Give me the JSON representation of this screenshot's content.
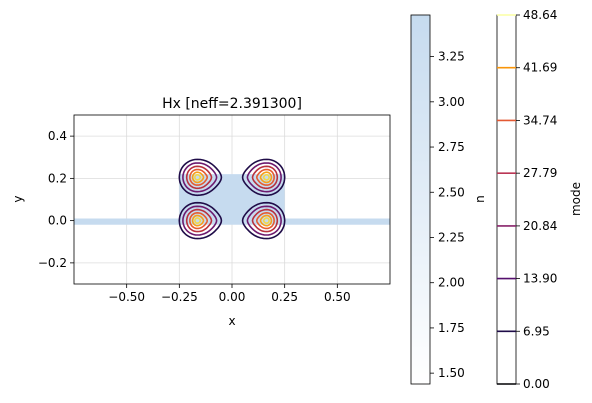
{
  "chart_data": {
    "type": "contour",
    "title": "Hx [neff=2.391300]",
    "xlabel": "x",
    "ylabel": "y",
    "xlim": [
      -0.75,
      0.75
    ],
    "ylim": [
      -0.3,
      0.5
    ],
    "xticks": [
      -0.5,
      -0.25,
      0.0,
      0.25,
      0.5
    ],
    "xtick_labels": [
      "−0.50",
      "−0.25",
      "0.00",
      "0.25",
      "0.50"
    ],
    "yticks": [
      -0.2,
      0.0,
      0.2,
      0.4
    ],
    "ytick_labels": [
      "−0.2",
      "0.0",
      "0.2",
      "0.4"
    ],
    "grid": true,
    "structure": {
      "ridge": {
        "x": [
          -0.25,
          0.25
        ],
        "y": [
          0.0,
          0.22
        ]
      },
      "slab": {
        "x": [
          -0.75,
          0.75
        ],
        "y": [
          -0.01,
          0.01
        ]
      },
      "color": "#c6dbef"
    },
    "lobes": [
      {
        "x": -0.165,
        "y": 0.205,
        "opens": "right"
      },
      {
        "x": 0.165,
        "y": 0.205,
        "opens": "left"
      },
      {
        "x": -0.165,
        "y": 0.0,
        "opens": "right"
      },
      {
        "x": 0.165,
        "y": 0.0,
        "opens": "left"
      }
    ],
    "contour_scales": [
      {
        "rx": 0.085,
        "ry": 0.085,
        "color": "#1f0c48"
      },
      {
        "rx": 0.068,
        "ry": 0.068,
        "color": "#6d1a6e"
      },
      {
        "rx": 0.05,
        "ry": 0.052,
        "color": "#b8323e"
      },
      {
        "rx": 0.035,
        "ry": 0.037,
        "color": "#e55c30"
      },
      {
        "rx": 0.022,
        "ry": 0.024,
        "color": "#f7a01a"
      },
      {
        "rx": 0.011,
        "ry": 0.012,
        "color": "#f2d84a"
      }
    ],
    "colorbar_n": {
      "label": "n",
      "range": [
        1.44,
        3.48
      ],
      "ticks": [
        "3.25",
        "3.00",
        "2.75",
        "2.50",
        "2.25",
        "2.00",
        "1.75",
        "1.50"
      ],
      "tick_values": [
        3.25,
        3.0,
        2.75,
        2.5,
        2.25,
        2.0,
        1.75,
        1.5
      ],
      "color_low": "#ffffff",
      "color_high": "#c6dbef"
    },
    "colorbar_mode": {
      "label": "mode",
      "range": [
        0.0,
        48.64
      ],
      "ticks": [
        "48.64",
        "41.69",
        "34.74",
        "27.79",
        "20.84",
        "13.90",
        "6.95",
        "0.00"
      ],
      "levels": [
        {
          "value": 0.0,
          "color": "#000004"
        },
        {
          "value": 6.95,
          "color": "#1f0c48"
        },
        {
          "value": 13.9,
          "color": "#550f6d"
        },
        {
          "value": 20.84,
          "color": "#88226a"
        },
        {
          "value": 27.79,
          "color": "#ba3655"
        },
        {
          "value": 34.74,
          "color": "#e35933"
        },
        {
          "value": 41.69,
          "color": "#f9950a"
        },
        {
          "value": 48.64,
          "color": "#fcffa4"
        }
      ]
    }
  }
}
